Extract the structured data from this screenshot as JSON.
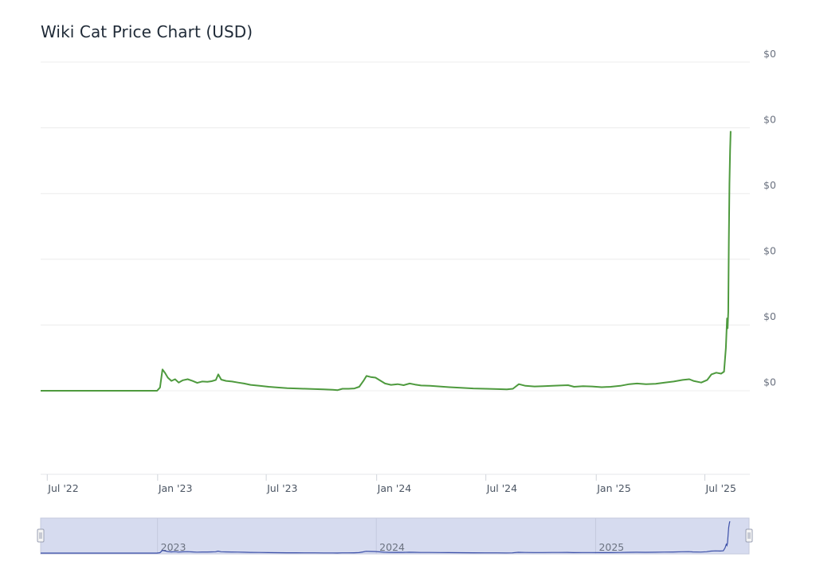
{
  "title": "Wiki Cat Price Chart (USD)",
  "chart_data": {
    "type": "line",
    "title": "Wiki Cat Price Chart (USD)",
    "y_ticks": [
      "$0",
      "$0",
      "$0",
      "$0",
      "$0",
      "$0"
    ],
    "x_ticks": [
      {
        "date": "2022-07-01",
        "label": "Jul '22"
      },
      {
        "date": "2023-01-01",
        "label": "Jan '23"
      },
      {
        "date": "2023-07-01",
        "label": "Jul '23"
      },
      {
        "date": "2024-01-01",
        "label": "Jan '24"
      },
      {
        "date": "2024-07-01",
        "label": "Jul '24"
      },
      {
        "date": "2025-01-01",
        "label": "Jan '25"
      },
      {
        "date": "2025-07-01",
        "label": "Jul '25"
      }
    ],
    "x_range": [
      "2022-06-20",
      "2025-09-14"
    ],
    "y_range": [
      -0.25,
      1.0
    ],
    "grid": true,
    "color": "#4e9a3e",
    "navigator": {
      "labels": [
        {
          "date": "2023-01-01",
          "label": "2023"
        },
        {
          "date": "2024-01-01",
          "label": "2024"
        },
        {
          "date": "2025-01-01",
          "label": "2025"
        }
      ],
      "color": "#3b4fa8",
      "fill": "#d6dbef"
    },
    "series": [
      {
        "points": [
          [
            "2022-06-20",
            0.0
          ],
          [
            "2022-09-01",
            0.0
          ],
          [
            "2022-11-01",
            0.0
          ],
          [
            "2022-12-31",
            0.0
          ],
          [
            "2023-01-05",
            0.01
          ],
          [
            "2023-01-09",
            0.065
          ],
          [
            "2023-01-13",
            0.055
          ],
          [
            "2023-01-18",
            0.04
          ],
          [
            "2023-01-24",
            0.03
          ],
          [
            "2023-01-30",
            0.035
          ],
          [
            "2023-02-05",
            0.025
          ],
          [
            "2023-02-12",
            0.032
          ],
          [
            "2023-02-20",
            0.035
          ],
          [
            "2023-02-28",
            0.03
          ],
          [
            "2023-03-08",
            0.024
          ],
          [
            "2023-03-16",
            0.028
          ],
          [
            "2023-03-25",
            0.027
          ],
          [
            "2023-04-01",
            0.029
          ],
          [
            "2023-04-08",
            0.033
          ],
          [
            "2023-04-12",
            0.05
          ],
          [
            "2023-04-17",
            0.034
          ],
          [
            "2023-04-25",
            0.03
          ],
          [
            "2023-05-05",
            0.028
          ],
          [
            "2023-05-15",
            0.025
          ],
          [
            "2023-05-25",
            0.022
          ],
          [
            "2023-06-05",
            0.018
          ],
          [
            "2023-06-20",
            0.015
          ],
          [
            "2023-07-05",
            0.012
          ],
          [
            "2023-07-20",
            0.01
          ],
          [
            "2023-08-05",
            0.008
          ],
          [
            "2023-08-20",
            0.007
          ],
          [
            "2023-09-05",
            0.006
          ],
          [
            "2023-09-20",
            0.005
          ],
          [
            "2023-10-05",
            0.004
          ],
          [
            "2023-10-20",
            0.003
          ],
          [
            "2023-10-28",
            0.002
          ],
          [
            "2023-11-05",
            0.006
          ],
          [
            "2023-11-15",
            0.006
          ],
          [
            "2023-11-25",
            0.007
          ],
          [
            "2023-12-03",
            0.012
          ],
          [
            "2023-12-10",
            0.03
          ],
          [
            "2023-12-15",
            0.045
          ],
          [
            "2023-12-22",
            0.042
          ],
          [
            "2023-12-30",
            0.04
          ],
          [
            "2024-01-08",
            0.03
          ],
          [
            "2024-01-15",
            0.022
          ],
          [
            "2024-01-25",
            0.018
          ],
          [
            "2024-02-05",
            0.02
          ],
          [
            "2024-02-15",
            0.017
          ],
          [
            "2024-02-25",
            0.022
          ],
          [
            "2024-03-05",
            0.019
          ],
          [
            "2024-03-15",
            0.016
          ],
          [
            "2024-03-30",
            0.015
          ],
          [
            "2024-04-15",
            0.013
          ],
          [
            "2024-05-01",
            0.011
          ],
          [
            "2024-05-20",
            0.009
          ],
          [
            "2024-06-10",
            0.007
          ],
          [
            "2024-07-01",
            0.006
          ],
          [
            "2024-07-20",
            0.005
          ],
          [
            "2024-08-05",
            0.004
          ],
          [
            "2024-08-15",
            0.006
          ],
          [
            "2024-08-25",
            0.02
          ],
          [
            "2024-09-05",
            0.015
          ],
          [
            "2024-09-20",
            0.013
          ],
          [
            "2024-10-05",
            0.014
          ],
          [
            "2024-10-20",
            0.015
          ],
          [
            "2024-11-01",
            0.016
          ],
          [
            "2024-11-15",
            0.017
          ],
          [
            "2024-11-25",
            0.012
          ],
          [
            "2024-12-10",
            0.014
          ],
          [
            "2024-12-25",
            0.013
          ],
          [
            "2025-01-10",
            0.011
          ],
          [
            "2025-01-25",
            0.012
          ],
          [
            "2025-02-10",
            0.015
          ],
          [
            "2025-02-25",
            0.02
          ],
          [
            "2025-03-10",
            0.022
          ],
          [
            "2025-03-25",
            0.02
          ],
          [
            "2025-04-10",
            0.021
          ],
          [
            "2025-04-25",
            0.025
          ],
          [
            "2025-05-10",
            0.028
          ],
          [
            "2025-05-25",
            0.033
          ],
          [
            "2025-06-05",
            0.035
          ],
          [
            "2025-06-12",
            0.03
          ],
          [
            "2025-06-25",
            0.025
          ],
          [
            "2025-07-05",
            0.033
          ],
          [
            "2025-07-12",
            0.05
          ],
          [
            "2025-07-20",
            0.055
          ],
          [
            "2025-07-28",
            0.052
          ],
          [
            "2025-08-02",
            0.058
          ],
          [
            "2025-08-05",
            0.13
          ],
          [
            "2025-08-07",
            0.22
          ],
          [
            "2025-08-08",
            0.19
          ],
          [
            "2025-08-09",
            0.24
          ],
          [
            "2025-08-10",
            0.45
          ],
          [
            "2025-08-11",
            0.63
          ],
          [
            "2025-08-12",
            0.73
          ],
          [
            "2025-08-13",
            0.79
          ]
        ]
      }
    ]
  }
}
